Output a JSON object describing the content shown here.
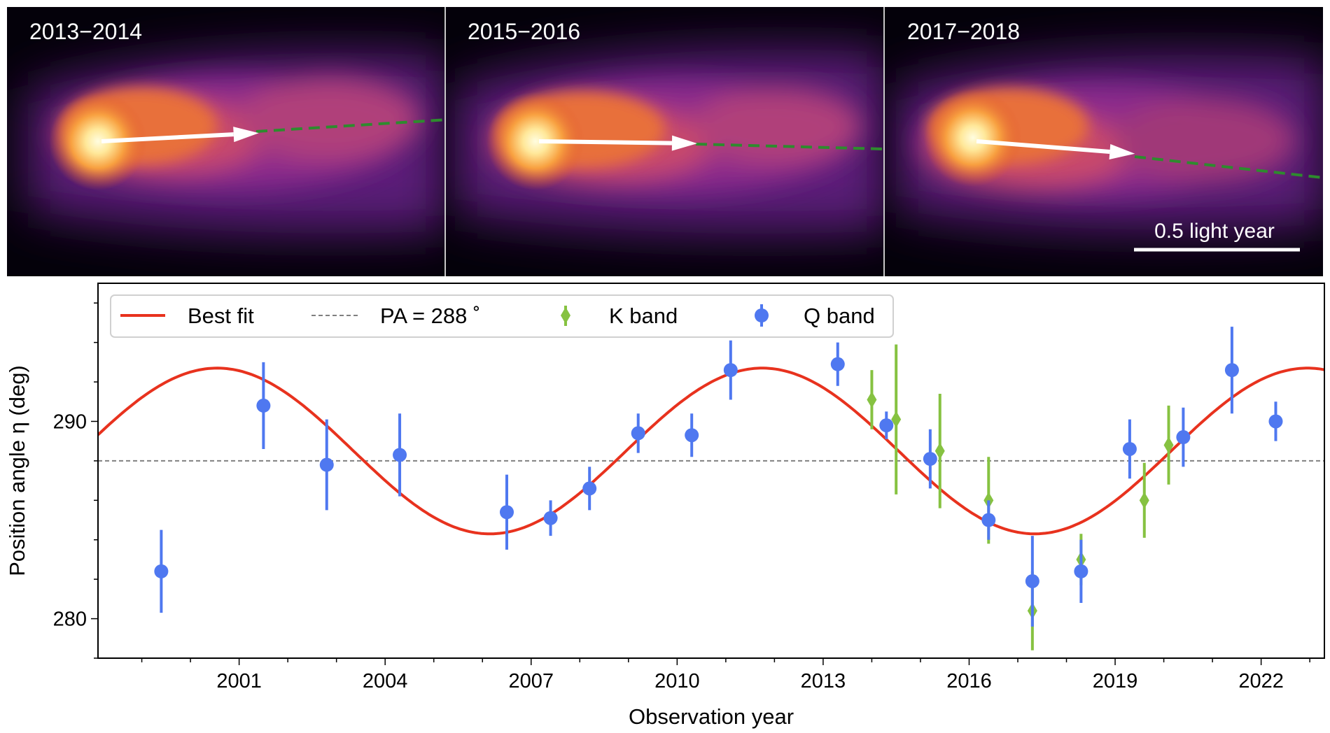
{
  "panels": [
    {
      "label": "2013−2014",
      "arrow_angle_deg": 3.0
    },
    {
      "label": "2015−2016",
      "arrow_angle_deg": -0.8
    },
    {
      "label": "2017−2018",
      "arrow_angle_deg": -4.5
    }
  ],
  "scale_bar_label": "0.5 light year",
  "colors": {
    "fit": "#e8321e",
    "reference": "#808080",
    "k_band": "#86c241",
    "q_band": "#4f78f0",
    "arrow": "#ffffff",
    "jet_axis": "#2e8b2e",
    "panel_bg": "#04010a"
  },
  "chart_data": {
    "type": "scatter",
    "xlabel": "Observation year",
    "ylabel": "Position angle η (deg)",
    "xlim": [
      1998.1,
      2023.3
    ],
    "ylim": [
      278,
      297
    ],
    "xticks": [
      2001,
      2004,
      2007,
      2010,
      2013,
      2016,
      2019,
      2022
    ],
    "yticks": [
      280,
      290
    ],
    "grid": false,
    "legend_placement": "top-left",
    "reference_line": {
      "name": "PA = 288 ˚",
      "y": 288
    },
    "fit": {
      "name": "Best fit",
      "model": "sinusoid",
      "mean": 288.5,
      "amplitude": 4.2,
      "period_years": 11.2,
      "peak_year": 2000.55
    },
    "series": [
      {
        "name": "K band",
        "marker": "diamond",
        "x": [
          2014.0,
          2014.5,
          2015.4,
          2016.4,
          2017.3,
          2018.3,
          2019.6,
          2020.1
        ],
        "y": [
          291.1,
          290.1,
          288.5,
          286.0,
          280.4,
          283.0,
          286.0,
          288.8
        ],
        "err": [
          1.5,
          3.8,
          2.9,
          2.2,
          2.0,
          1.3,
          1.9,
          2.0
        ]
      },
      {
        "name": "Q band",
        "marker": "circle",
        "x": [
          1999.4,
          2001.5,
          2002.8,
          2004.3,
          2006.5,
          2007.4,
          2008.2,
          2009.2,
          2010.3,
          2011.1,
          2013.3,
          2014.3,
          2015.2,
          2016.4,
          2017.3,
          2018.3,
          2019.3,
          2020.4,
          2021.4,
          2022.3
        ],
        "y": [
          282.4,
          290.8,
          287.8,
          288.3,
          285.4,
          285.1,
          286.6,
          289.4,
          289.3,
          292.6,
          292.9,
          289.8,
          288.1,
          285.0,
          281.9,
          282.4,
          288.6,
          289.2,
          292.6,
          290.0
        ],
        "err": [
          2.1,
          2.2,
          2.3,
          2.1,
          1.9,
          0.9,
          1.1,
          1.0,
          1.1,
          1.5,
          1.1,
          0.7,
          1.5,
          1.0,
          2.3,
          1.6,
          1.5,
          1.5,
          2.2,
          1.0
        ]
      }
    ]
  }
}
